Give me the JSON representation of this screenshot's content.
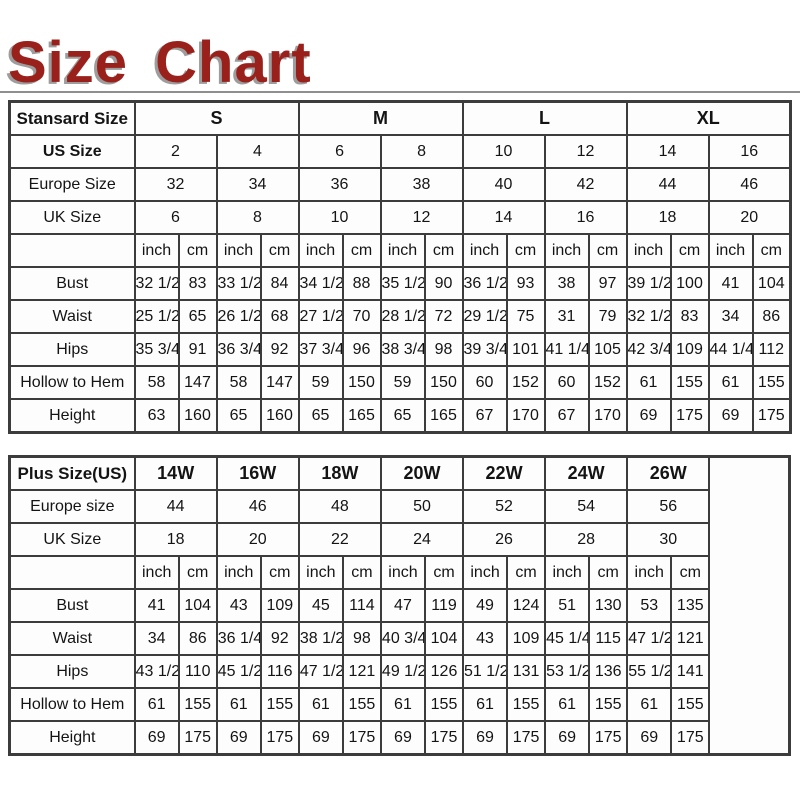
{
  "page": {
    "title": "Size Chart",
    "accent_color": "#9a211b",
    "border_color": "#3c3c3c",
    "background_color": "#ffffff"
  },
  "unit_pair": [
    "inch",
    "cm"
  ],
  "chart_data": [
    {
      "type": "table",
      "id": "standard",
      "corner_label": "Stansard Size",
      "corner_bold": true,
      "groups": [
        "S",
        "M",
        "L",
        "XL"
      ],
      "group_pairs": 2,
      "pairs": 8,
      "size_rows": [
        {
          "label": "US Size",
          "bold": true,
          "values": [
            "2",
            "4",
            "6",
            "8",
            "10",
            "12",
            "14",
            "16"
          ]
        },
        {
          "label": "Europe Size",
          "bold": false,
          "values": [
            "32",
            "34",
            "36",
            "38",
            "40",
            "42",
            "44",
            "46"
          ]
        },
        {
          "label": "UK Size",
          "bold": false,
          "values": [
            "6",
            "8",
            "10",
            "12",
            "14",
            "16",
            "18",
            "20"
          ]
        }
      ],
      "measure_rows": [
        {
          "label": "Bust",
          "values": [
            "32 1/2",
            "83",
            "33 1/2",
            "84",
            "34 1/2",
            "88",
            "35 1/2",
            "90",
            "36 1/2",
            "93",
            "38",
            "97",
            "39 1/2",
            "100",
            "41",
            "104"
          ]
        },
        {
          "label": "Waist",
          "values": [
            "25 1/2",
            "65",
            "26 1/2",
            "68",
            "27 1/2",
            "70",
            "28 1/2",
            "72",
            "29 1/2",
            "75",
            "31",
            "79",
            "32 1/2",
            "83",
            "34",
            "86"
          ]
        },
        {
          "label": "Hips",
          "values": [
            "35 3/4",
            "91",
            "36 3/4",
            "92",
            "37 3/4",
            "96",
            "38 3/4",
            "98",
            "39 3/4",
            "101",
            "41 1/4",
            "105",
            "42 3/4",
            "109",
            "44 1/4",
            "112"
          ]
        },
        {
          "label": "Hollow to Hem",
          "values": [
            "58",
            "147",
            "58",
            "147",
            "59",
            "150",
            "59",
            "150",
            "60",
            "152",
            "60",
            "152",
            "61",
            "155",
            "61",
            "155"
          ]
        },
        {
          "label": "Height",
          "values": [
            "63",
            "160",
            "65",
            "160",
            "65",
            "165",
            "65",
            "165",
            "67",
            "170",
            "67",
            "170",
            "69",
            "175",
            "69",
            "175"
          ]
        }
      ],
      "trailing_empty_col": false
    },
    {
      "type": "table",
      "id": "plus",
      "corner_label": "Plus Size(US)",
      "corner_bold": true,
      "groups": [
        "14W",
        "16W",
        "18W",
        "20W",
        "22W",
        "24W",
        "26W"
      ],
      "group_pairs": 1,
      "pairs": 7,
      "size_rows": [
        {
          "label": "Europe size",
          "bold": false,
          "values": [
            "44",
            "46",
            "48",
            "50",
            "52",
            "54",
            "56"
          ]
        },
        {
          "label": "UK Size",
          "bold": false,
          "values": [
            "18",
            "20",
            "22",
            "24",
            "26",
            "28",
            "30"
          ]
        }
      ],
      "measure_rows": [
        {
          "label": "Bust",
          "values": [
            "41",
            "104",
            "43",
            "109",
            "45",
            "114",
            "47",
            "119",
            "49",
            "124",
            "51",
            "130",
            "53",
            "135"
          ]
        },
        {
          "label": "Waist",
          "values": [
            "34",
            "86",
            "36 1/4",
            "92",
            "38 1/2",
            "98",
            "40 3/4",
            "104",
            "43",
            "109",
            "45 1/4",
            "115",
            "47 1/2",
            "121"
          ]
        },
        {
          "label": "Hips",
          "values": [
            "43 1/2",
            "110",
            "45 1/2",
            "116",
            "47 1/2",
            "121",
            "49 1/2",
            "126",
            "51 1/2",
            "131",
            "53 1/2",
            "136",
            "55 1/2",
            "141"
          ]
        },
        {
          "label": "Hollow to Hem",
          "values": [
            "61",
            "155",
            "61",
            "155",
            "61",
            "155",
            "61",
            "155",
            "61",
            "155",
            "61",
            "155",
            "61",
            "155"
          ]
        },
        {
          "label": "Height",
          "values": [
            "69",
            "175",
            "69",
            "175",
            "69",
            "175",
            "69",
            "175",
            "69",
            "175",
            "69",
            "175",
            "69",
            "175"
          ]
        }
      ],
      "trailing_empty_col": true
    }
  ]
}
